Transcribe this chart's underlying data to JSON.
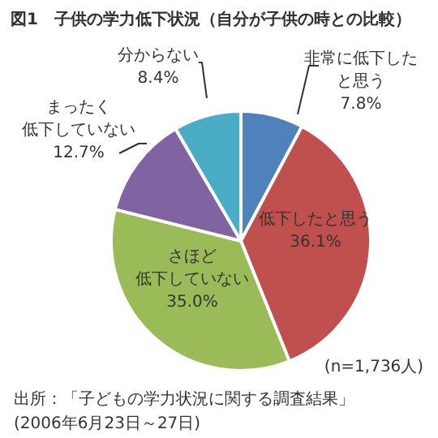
{
  "chart_data": {
    "type": "pie",
    "title": "図1　子供の学力低下状況（自分が子供の時との比較）",
    "categories": [
      "非常に低下したと思う",
      "低下したと思う",
      "さほど低下していない",
      "まったく低下していない",
      "分からない"
    ],
    "values": [
      7.8,
      36.1,
      35.0,
      12.7,
      8.4
    ],
    "colors": [
      "#4f81bd",
      "#c0504d",
      "#9bbb59",
      "#8064a2",
      "#4bacc6"
    ],
    "value_labels": [
      "7.8%",
      "36.1%",
      "35.0%",
      "12.7%",
      "8.4%"
    ],
    "annotations": [
      "(n=1,736人)",
      "出所：「子どもの学力状況に関する調査結果」",
      "(2006年6月23日～27日)"
    ]
  }
}
